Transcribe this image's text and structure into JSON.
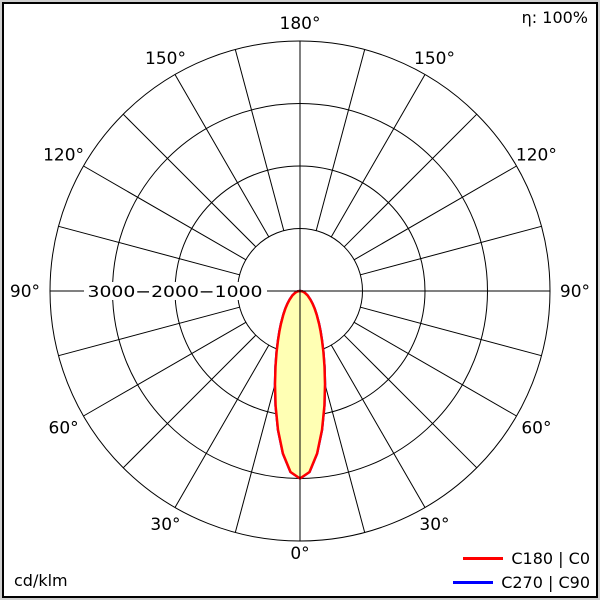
{
  "labels": {
    "eta": "η: 100%",
    "unit": "cd/klm"
  },
  "legend": {
    "items": [
      {
        "label": "C180 | C0",
        "color": "#ff0000"
      },
      {
        "label": "C270 | C90",
        "color": "#0000ff"
      }
    ]
  },
  "chart_data": {
    "type": "polar",
    "subtype": "luminous-intensity-distribution",
    "units": "cd/klm",
    "efficiency": "η: 100%",
    "radial_ticks": [
      1000,
      2000,
      3000
    ],
    "radial_max": 4000,
    "spoke_step_deg": 15,
    "angle_labels_deg": [
      0,
      30,
      60,
      90,
      120,
      150,
      180
    ],
    "radial_tick_label": "3000−2000−1000",
    "grid": true,
    "legend_position": "bottom-right",
    "series": [
      {
        "name": "C180 | C0",
        "color": "#ff0000",
        "fill": "#ffffb4",
        "gamma_deg": [
          0,
          3,
          6,
          9,
          12,
          15,
          18,
          21,
          24,
          27,
          30,
          35,
          40,
          45,
          50,
          60,
          70,
          80,
          90
        ],
        "values_cd_klm": [
          3000,
          2900,
          2615,
          2250,
          1880,
          1545,
          1270,
          1045,
          865,
          725,
          610,
          465,
          360,
          280,
          220,
          140,
          80,
          40,
          0
        ]
      },
      {
        "name": "C270 | C90",
        "color": "#0000ff",
        "fill": "none",
        "gamma_deg": [
          0,
          3,
          6,
          9,
          12,
          15,
          18,
          21,
          24,
          27,
          30,
          35,
          40,
          45,
          50,
          60,
          70,
          80,
          90
        ],
        "values_cd_klm": [
          3000,
          2900,
          2615,
          2250,
          1880,
          1545,
          1270,
          1045,
          865,
          725,
          610,
          465,
          360,
          280,
          220,
          140,
          80,
          40,
          0
        ]
      }
    ]
  }
}
